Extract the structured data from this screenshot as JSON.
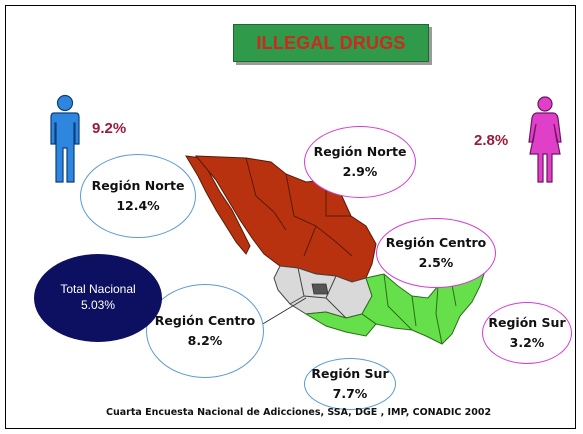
{
  "title": "ILLEGAL DRUGS",
  "men": {
    "icon": "male-figure-icon",
    "percent": "9.2%",
    "color": "#2e86de"
  },
  "women": {
    "icon": "female-figure-icon",
    "percent": "2.8%",
    "color": "#e040c8"
  },
  "national": {
    "label": "Total Nacional",
    "value": "5.03%"
  },
  "men_regions": [
    {
      "name": "Región Norte",
      "value": "12.4%"
    },
    {
      "name": "Región Centro",
      "value": "8.2%"
    },
    {
      "name": "Región Sur",
      "value": "7.7%"
    }
  ],
  "women_regions": [
    {
      "name": "Región Norte",
      "value": "2.9%"
    },
    {
      "name": "Región Centro",
      "value": "2.5%"
    },
    {
      "name": "Región Sur",
      "value": "3.2%"
    }
  ],
  "map": {
    "icon": "mexico-map-icon",
    "colors": {
      "norte": "#b8320f",
      "centro": "#d9d9d9",
      "sur": "#66e04a"
    }
  },
  "source": "Cuarta Encuesta Nacional de Adicciones, SSA, DGE , IMP, CONADIC  2002"
}
